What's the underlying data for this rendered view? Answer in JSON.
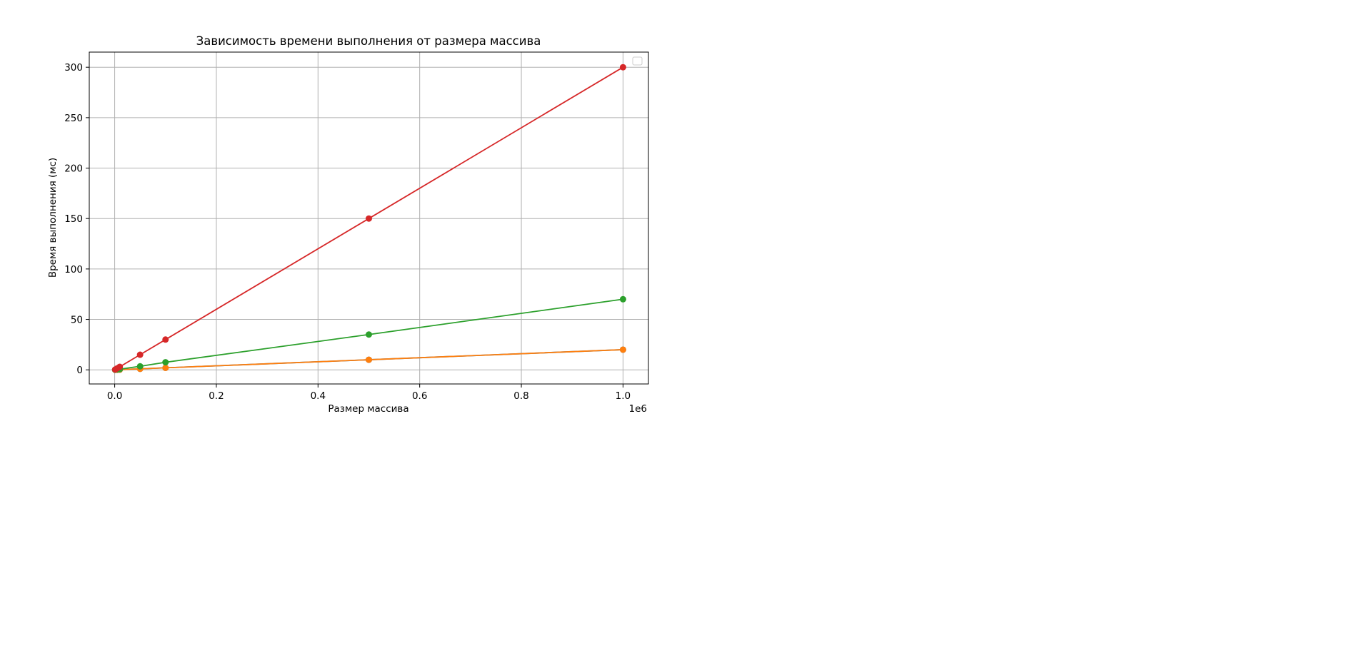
{
  "chart_data": {
    "type": "line",
    "title": "Зависимость времени выполнения от размера массива",
    "xlabel": "Размер массива",
    "ylabel": "Время выполнения (мс)",
    "x_offset_text": "1e6",
    "xlim": [
      -50000,
      1050000
    ],
    "ylim": [
      -14,
      315
    ],
    "x_ticks": [
      0,
      200000,
      400000,
      600000,
      800000,
      1000000
    ],
    "x_tick_labels": [
      "0.0",
      "0.2",
      "0.4",
      "0.6",
      "0.8",
      "1.0"
    ],
    "y_ticks": [
      0,
      50,
      100,
      150,
      200,
      250,
      300
    ],
    "y_tick_labels": [
      "0",
      "50",
      "100",
      "150",
      "200",
      "250",
      "300"
    ],
    "grid": true,
    "legend": "top-right (empty)",
    "x": [
      1000,
      5000,
      10000,
      50000,
      100000,
      500000,
      1000000
    ],
    "series": [
      {
        "color": "#1f77b4",
        "marker": "circle",
        "values": [
          0.02,
          0.1,
          0.2,
          1,
          2,
          10,
          20
        ]
      },
      {
        "color": "#ff7f0e",
        "marker": "circle",
        "values": [
          0.02,
          0.1,
          0.2,
          1,
          2,
          10,
          20
        ]
      },
      {
        "color": "#2ca02c",
        "marker": "circle",
        "values": [
          0.07,
          0.35,
          0.7,
          3.5,
          7.5,
          35,
          70
        ]
      },
      {
        "color": "#d62728",
        "marker": "circle",
        "values": [
          0.3,
          1.5,
          3,
          15,
          30,
          150,
          300
        ]
      }
    ]
  }
}
